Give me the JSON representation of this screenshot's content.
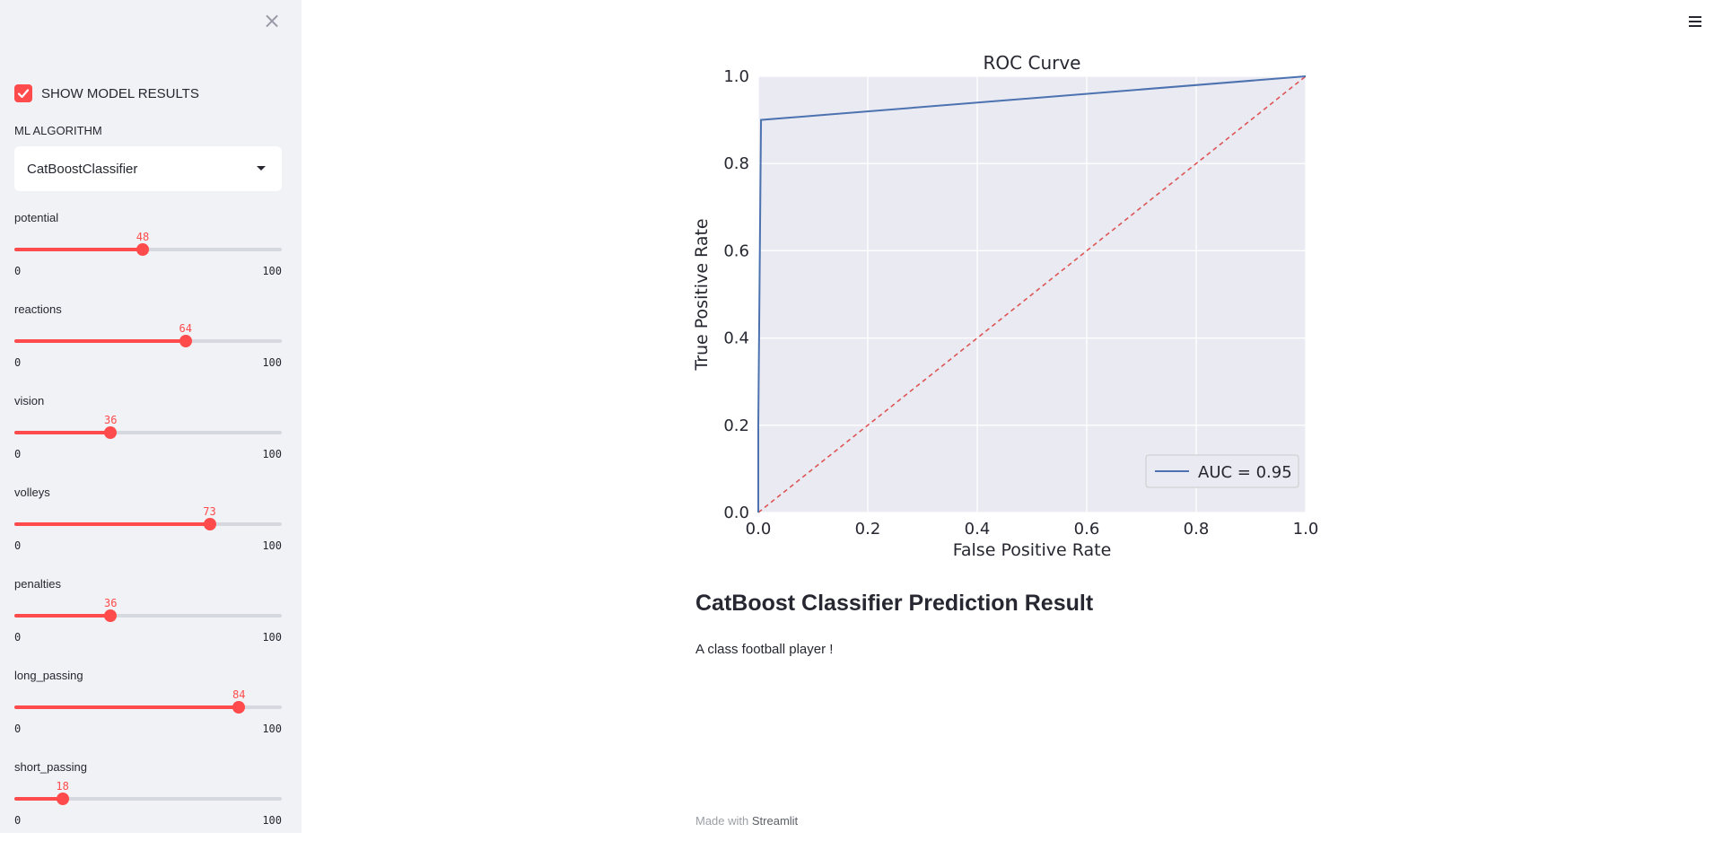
{
  "sidebar": {
    "close_icon": "×",
    "show_results": {
      "label": "SHOW MODEL RESULTS",
      "checked": true
    },
    "algorithm": {
      "label": "ML ALGORITHM",
      "selected": "CatBoostClassifier"
    },
    "sliders": [
      {
        "label": "potential",
        "value": "48",
        "min": "0",
        "max": "100"
      },
      {
        "label": "reactions",
        "value": "64",
        "min": "0",
        "max": "100"
      },
      {
        "label": "vision",
        "value": "36",
        "min": "0",
        "max": "100"
      },
      {
        "label": "volleys",
        "value": "73",
        "min": "0",
        "max": "100"
      },
      {
        "label": "penalties",
        "value": "36",
        "min": "0",
        "max": "100"
      },
      {
        "label": "long_passing",
        "value": "84",
        "min": "0",
        "max": "100"
      },
      {
        "label": "short_passing",
        "value": "18",
        "min": "0",
        "max": "100"
      }
    ]
  },
  "main": {
    "menu_icon": "hamburger-menu-icon",
    "result_title": "CatBoost Classifier Prediction Result",
    "result_text": "A class football player !",
    "footer": {
      "prefix": "Made with ",
      "brand": "Streamlit"
    }
  },
  "colors": {
    "accent": "#ff4b4b",
    "roc_line": "#4c72b0",
    "diag_line": "#dd5555",
    "plot_bg": "#eaeaf2"
  },
  "chart_data": {
    "type": "line",
    "title": "ROC Curve",
    "xlabel": "False Positive Rate",
    "ylabel": "True Positive Rate",
    "xlim": [
      0,
      1
    ],
    "ylim": [
      0,
      1
    ],
    "xticks": [
      "0.0",
      "0.2",
      "0.4",
      "0.6",
      "0.8",
      "1.0"
    ],
    "yticks": [
      "0.0",
      "0.2",
      "0.4",
      "0.6",
      "0.8",
      "1.0"
    ],
    "grid": true,
    "legend_position": "bottom-right",
    "series": [
      {
        "name": "AUC = 0.95",
        "x": [
          0.0,
          0.0,
          0.005,
          1.0
        ],
        "y": [
          0.0,
          0.2,
          0.9,
          1.0
        ],
        "style": "solid"
      },
      {
        "x": [
          0,
          1
        ],
        "y": [
          0,
          1
        ],
        "style": "dashed"
      }
    ]
  }
}
